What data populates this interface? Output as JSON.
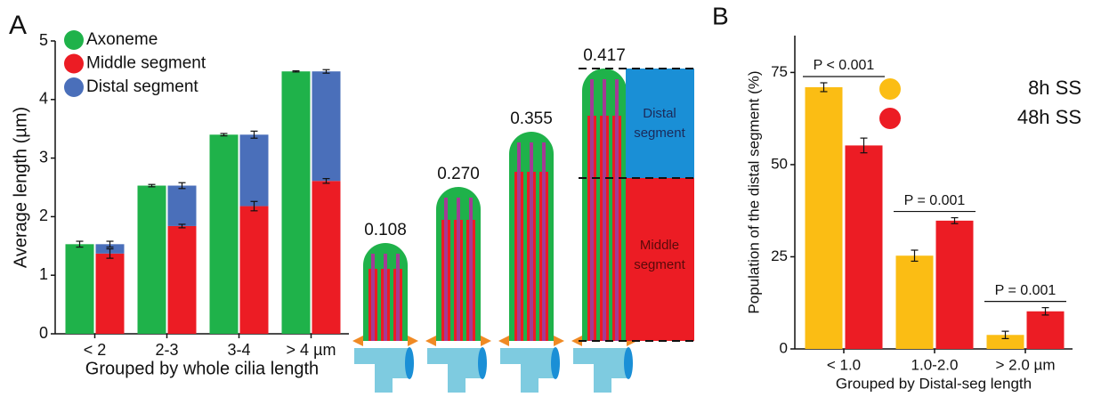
{
  "chart_data": [
    {
      "type": "bar",
      "panel_label": "A",
      "ylabel": "Average length (µm)",
      "xlabel": "Grouped by whole cilia length",
      "categories": [
        "< 2",
        "2-3",
        "3-4",
        "> 4 µm"
      ],
      "series": [
        {
          "name": "Axoneme",
          "color": "#1fb24a",
          "stack": 0,
          "values": [
            1.53,
            2.53,
            3.4,
            4.48
          ],
          "errors": [
            0.05,
            0.02,
            0.02,
            0.01
          ]
        },
        {
          "name": "Middle segment",
          "color": "#ec1c24",
          "stack": 1,
          "values": [
            1.37,
            1.84,
            2.18,
            2.61
          ],
          "errors": [
            0.08,
            0.03,
            0.08,
            0.04
          ]
        },
        {
          "name": "Distal segment",
          "color": "#4a6fba",
          "stack": 1,
          "values": [
            0.16,
            0.69,
            1.22,
            1.87
          ],
          "errors": [
            0.05,
            0.05,
            0.06,
            0.03
          ]
        }
      ],
      "ylim": [
        0,
        5
      ],
      "yticks": [
        0,
        1,
        2,
        3,
        4,
        5
      ],
      "legend": "top-left"
    },
    {
      "type": "bar",
      "panel_label": "B",
      "ylabel": "Population of the distal segment (%)",
      "xlabel": "Grouped by Distal-seg length",
      "categories": [
        "< 1.0",
        "1.0-2.0",
        "> 2.0 µm"
      ],
      "series": [
        {
          "name": "8h SS",
          "color": "#fbbd14",
          "values": [
            71,
            25.3,
            3.8
          ],
          "errors": [
            1.2,
            1.5,
            1.0
          ]
        },
        {
          "name": "48h SS",
          "color": "#ec1c24",
          "values": [
            55.2,
            34.8,
            10.2
          ],
          "errors": [
            2.0,
            0.8,
            1.0
          ]
        }
      ],
      "annotations": [
        "P < 0.001",
        "P = 0.001",
        "P = 0.001"
      ],
      "ylim": [
        0,
        85
      ],
      "yticks": [
        0,
        25,
        50,
        75
      ],
      "legend": "top-right"
    }
  ],
  "diagram": {
    "labels": [
      "0.108",
      "0.270",
      "0.355",
      "0.417"
    ],
    "distal_label": [
      "Distal",
      "segment"
    ],
    "middle_label": [
      "Middle",
      "segment"
    ]
  }
}
